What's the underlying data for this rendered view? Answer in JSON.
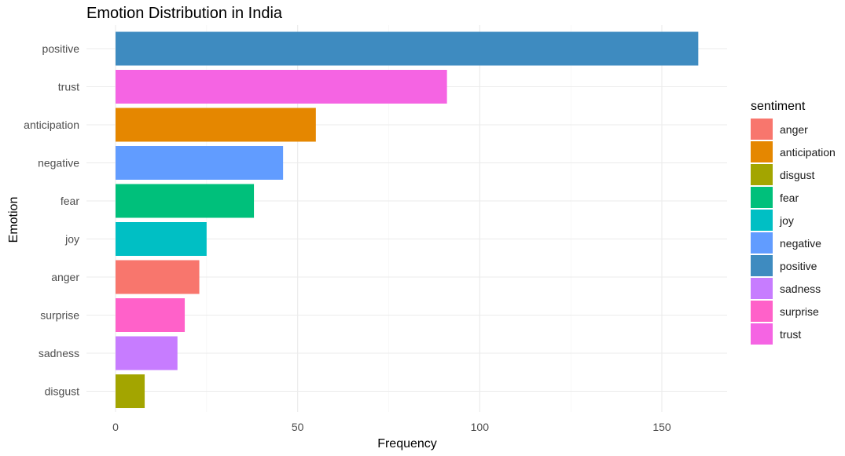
{
  "chart_data": {
    "type": "bar",
    "orientation": "horizontal",
    "title": "Emotion Distribution in India",
    "xlabel": "Frequency",
    "ylabel": "Emotion",
    "xlim": [
      0,
      170
    ],
    "x_ticks": [
      0,
      50,
      100,
      150
    ],
    "grid": true,
    "legend_position": "right",
    "legend_title": "sentiment",
    "categories": [
      "positive",
      "trust",
      "anticipation",
      "negative",
      "fear",
      "joy",
      "anger",
      "surprise",
      "sadness",
      "disgust"
    ],
    "values": [
      160,
      91,
      55,
      46,
      38,
      25,
      23,
      19,
      17,
      8
    ],
    "colors": {
      "anger": "#F8766D",
      "anticipation": "#E58700",
      "disgust": "#A3A500",
      "fear": "#00C07B",
      "joy": "#00BFC4",
      "negative": "#619CFF",
      "positive": "#3E8BC0",
      "sadness": "#C77CFF",
      "surprise": "#FF61C9",
      "trust": "#F564E3"
    },
    "legend_items": [
      "anger",
      "anticipation",
      "disgust",
      "fear",
      "joy",
      "negative",
      "positive",
      "sadness",
      "surprise",
      "trust"
    ]
  }
}
